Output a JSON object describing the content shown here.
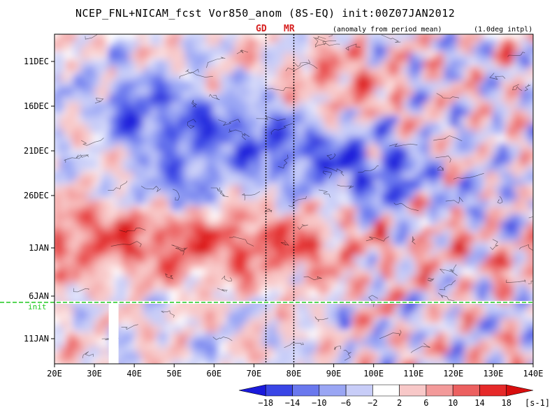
{
  "header": {
    "title": "NCEP_FNL+NICAM_fcst Vor850_anom (8S-EQ) init:00Z07JAN2012",
    "anomaly_note": "(anomaly from period mean)",
    "interp_note": "(1.0deg intpl)"
  },
  "markers": {
    "gd_label": "GD",
    "mr_label": "MR",
    "init_label": "init"
  },
  "chart_data": {
    "type": "heatmap",
    "title": "NCEP_FNL+NICAM_fcst Vor850_anom (8S-EQ) init:00Z07JAN2012",
    "x": {
      "ticks": [
        20,
        30,
        40,
        50,
        60,
        70,
        80,
        90,
        100,
        110,
        120,
        130,
        140
      ],
      "tick_labels": [
        "20E",
        "30E",
        "40E",
        "50E",
        "60E",
        "70E",
        "80E",
        "90E",
        "100E",
        "110E",
        "120E",
        "130E",
        "140E"
      ],
      "range": [
        20,
        140
      ]
    },
    "y": {
      "tick_labels": [
        "11DEC",
        "16DEC",
        "21DEC",
        "26DEC",
        "1JAN",
        "6JAN",
        "11JAN"
      ],
      "range_days_note": "time increases downward"
    },
    "vertical_markers": [
      {
        "label": "GD",
        "lon": 73
      },
      {
        "label": "MR",
        "lon": 80
      }
    ],
    "init_line": {
      "label": "init",
      "date": "07JAN"
    },
    "colorbar": {
      "levels": [
        -18,
        -14,
        -10,
        -6,
        -2,
        2,
        6,
        10,
        14,
        18
      ],
      "labels": [
        "−18",
        "−14",
        "−10",
        "−6",
        "−2",
        "2",
        "6",
        "10",
        "14",
        "18"
      ],
      "unit": "[s-1]",
      "colors": [
        "#1a1adb",
        "#3a46e6",
        "#6a78ee",
        "#9aa6f4",
        "#c8cdf8",
        "#ffffff",
        "#f8c8c8",
        "#f39a9a",
        "#ec6060",
        "#e62a2a",
        "#d80e0e"
      ]
    }
  }
}
